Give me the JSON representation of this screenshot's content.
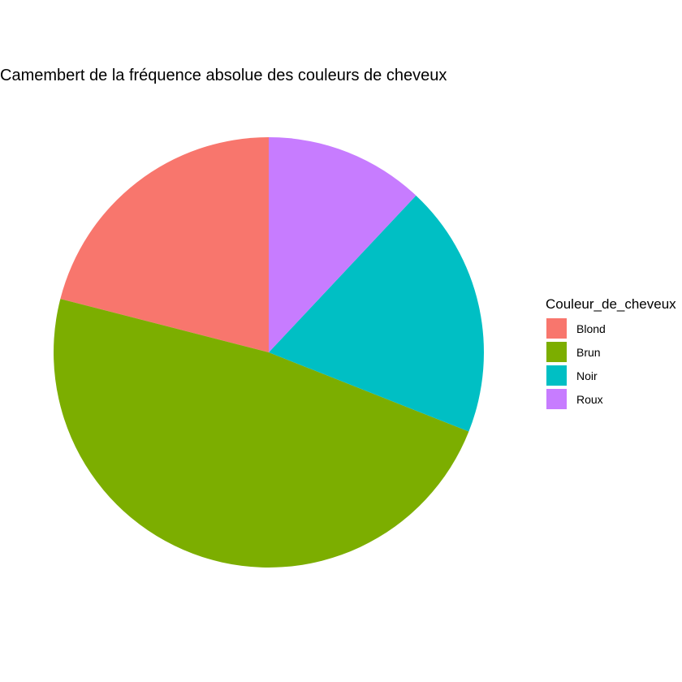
{
  "chart_data": {
    "type": "pie",
    "title": "Camembert de la fréquence absolue des couleurs de cheveux",
    "legend": {
      "title": "Couleur_de_cheveux",
      "position": "right"
    },
    "categories": [
      "Blond",
      "Brun",
      "Noir",
      "Roux"
    ],
    "values": [
      21,
      48,
      19,
      12
    ],
    "colors": [
      "#F8766D",
      "#7CAE00",
      "#00BFC4",
      "#C77CFF"
    ],
    "start": "top",
    "direction": "counterclockwise"
  }
}
